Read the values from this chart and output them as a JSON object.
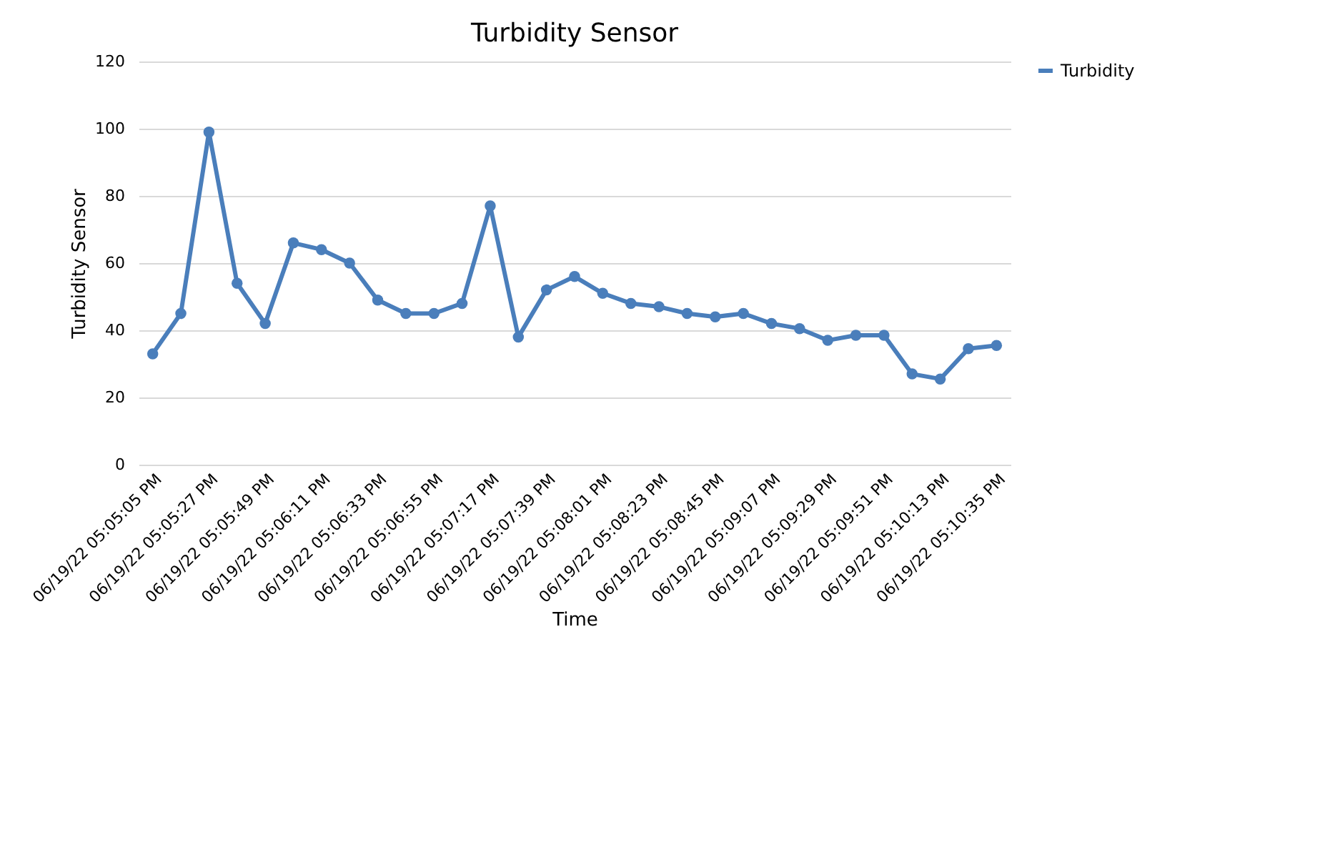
{
  "chart_data": {
    "type": "line",
    "title": "Turbidity Sensor",
    "xlabel": "Time",
    "ylabel": "Turbidity Sensor",
    "categories": [
      "06/19/22 05:05:05 PM",
      null,
      "06/19/22 05:05:27 PM",
      null,
      "06/19/22 05:05:49 PM",
      null,
      "06/19/22 05:06:11 PM",
      null,
      "06/19/22 05:06:33 PM",
      null,
      "06/19/22 05:06:55 PM",
      null,
      "06/19/22 05:07:17 PM",
      null,
      "06/19/22 05:07:39 PM",
      null,
      "06/19/22 05:08:01 PM",
      null,
      "06/19/22 05:08:23 PM",
      null,
      "06/19/22 05:08:45 PM",
      null,
      "06/19/22 05:09:07 PM",
      null,
      "06/19/22 05:09:29 PM",
      null,
      "06/19/22 05:09:51 PM",
      null,
      "06/19/22 05:10:13 PM",
      null,
      "06/19/22 05:10:35 PM"
    ],
    "series": [
      {
        "name": "Turbidity",
        "color": "#4a7ebb",
        "values": [
          33,
          45,
          99,
          54,
          42,
          66,
          64,
          60,
          49,
          45,
          45,
          48,
          77,
          38,
          52,
          56,
          51,
          48,
          47,
          45,
          44,
          45,
          42,
          40.5,
          37,
          38.5,
          38.5,
          27,
          25.5,
          34.5,
          35.5
        ]
      }
    ],
    "ylim": [
      0,
      120
    ],
    "yticks": [
      0,
      20,
      40,
      60,
      80,
      100,
      120
    ],
    "grid": "y",
    "legend": "right",
    "marker": "circle",
    "line_style": "solid"
  }
}
